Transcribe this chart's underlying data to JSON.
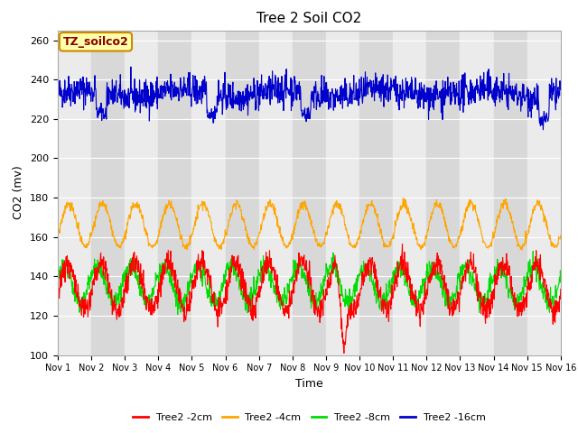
{
  "title": "Tree 2 Soil CO2",
  "xlabel": "Time",
  "ylabel": "CO2 (mv)",
  "ylim": [
    100,
    265
  ],
  "yticks": [
    100,
    120,
    140,
    160,
    180,
    200,
    220,
    240,
    260
  ],
  "xlim": [
    0,
    15
  ],
  "xtick_labels": [
    "Nov 1",
    "Nov 2",
    "Nov 3",
    "Nov 4",
    "Nov 5",
    "Nov 6",
    "Nov 7",
    "Nov 8",
    "Nov 9",
    "Nov 10",
    "Nov 11",
    "Nov 12",
    "Nov 13",
    "Nov 14",
    "Nov 15",
    "Nov 16"
  ],
  "bg_color": "#e0e0e0",
  "fig_bg": "#ffffff",
  "legend_label": "TZ_soilco2",
  "series_colors": {
    "2cm": "#ff0000",
    "4cm": "#ffa500",
    "8cm": "#00dd00",
    "16cm": "#0000cc"
  },
  "series_labels": [
    "Tree2 -2cm",
    "Tree2 -4cm",
    "Tree2 -8cm",
    "Tree2 -16cm"
  ],
  "line_width": 0.8,
  "grid_color": "#ffffff",
  "band_light": "#ebebeb",
  "band_dark": "#d8d8d8"
}
